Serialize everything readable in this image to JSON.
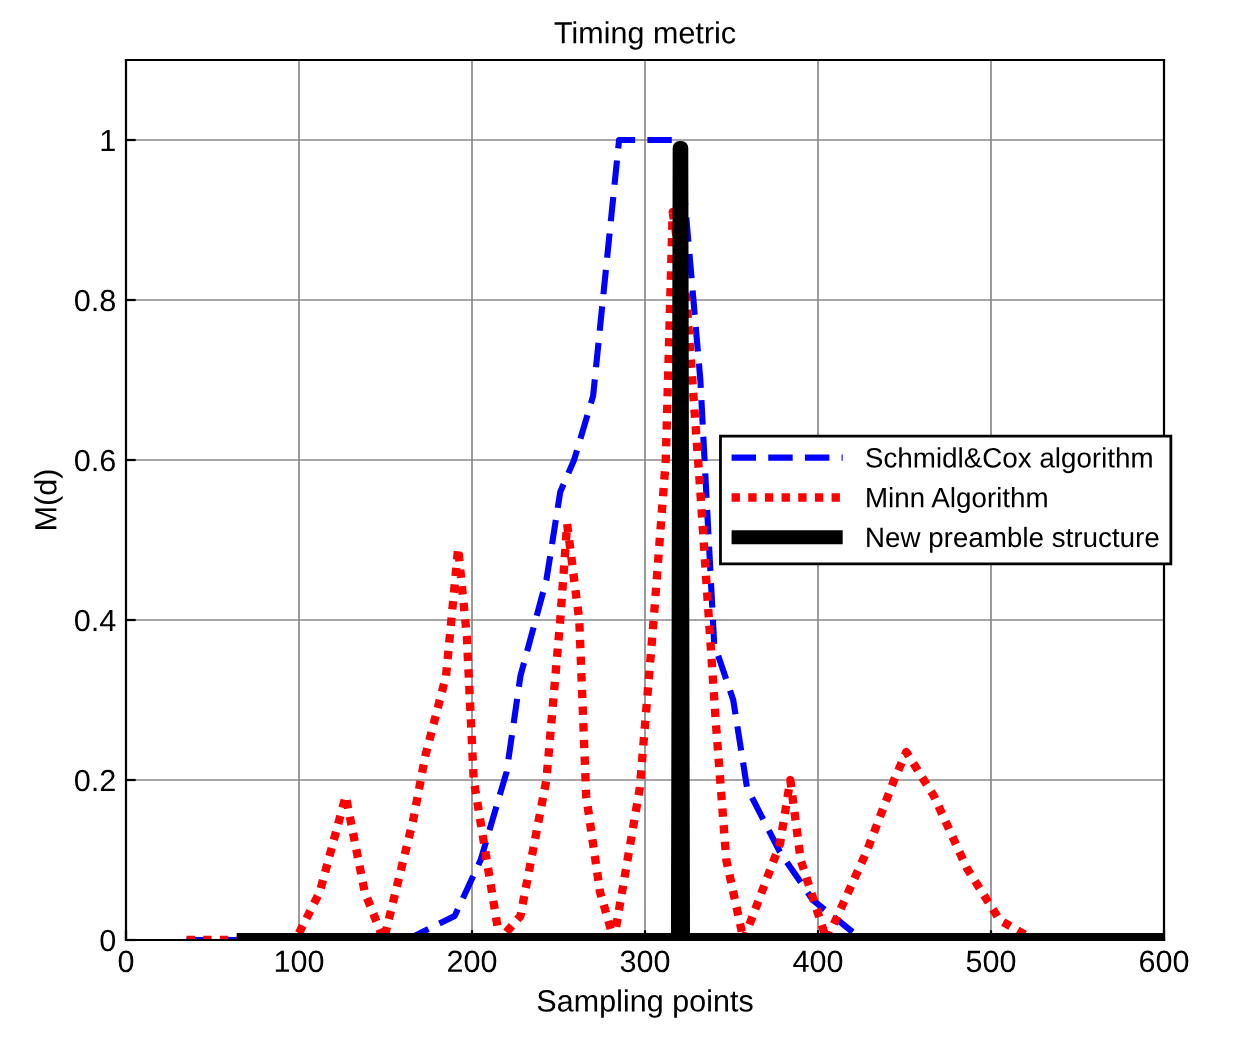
{
  "chart_data": {
    "type": "line",
    "title": "Timing metric",
    "xlabel": "Sampling points",
    "ylabel": "M(d)",
    "xlim": [
      0,
      600
    ],
    "ylim": [
      0,
      1.1
    ],
    "xticks": [
      0,
      100,
      200,
      300,
      400,
      500,
      600
    ],
    "yticks": [
      0,
      0.2,
      0.4,
      0.6,
      0.8,
      1
    ],
    "grid": true,
    "legend": "right",
    "series": [
      {
        "name": "Schmidl&Cox algorithm",
        "color": "#0000ff",
        "line_style": "dashed",
        "x": [
          35,
          100,
          162,
          190,
          205,
          220,
          228,
          243,
          251,
          259,
          270,
          285,
          320,
          332,
          340,
          351,
          359,
          378,
          397,
          420
        ],
        "values": [
          0,
          0,
          0,
          0.03,
          0.1,
          0.21,
          0.33,
          0.45,
          0.56,
          0.6,
          0.68,
          1,
          1,
          0.7,
          0.37,
          0.3,
          0.19,
          0.11,
          0.05,
          0.01
        ]
      },
      {
        "name": "Minn Algorithm",
        "color": "#ff0000",
        "line_style": "dotted",
        "x": [
          35,
          98,
          112,
          127,
          138,
          149,
          166,
          173,
          185,
          192,
          197,
          201,
          216,
          228,
          243,
          251,
          255,
          262,
          266,
          274,
          282,
          297,
          305,
          312,
          316,
          324,
          332,
          341,
          347,
          357,
          378,
          384,
          390,
          405,
          428,
          444,
          451,
          467,
          486,
          505,
          525,
          600
        ],
        "values": [
          0,
          0,
          0.06,
          0.18,
          0.06,
          0,
          0.15,
          0.23,
          0.33,
          0.49,
          0.38,
          0.2,
          0,
          0.03,
          0.2,
          0.4,
          0.52,
          0.4,
          0.18,
          0.06,
          0,
          0.19,
          0.4,
          0.6,
          0.91,
          0.8,
          0.56,
          0.27,
          0.1,
          0,
          0.12,
          0.2,
          0.1,
          0,
          0.11,
          0.2,
          0.235,
          0.18,
          0.09,
          0.025,
          0,
          0
        ]
      },
      {
        "name": "New preamble structure",
        "color": "#000000",
        "line_style": "solid",
        "x": [
          64,
          319,
          320,
          321,
          322,
          600
        ],
        "values": [
          0,
          0,
          0.99,
          0.99,
          0,
          0
        ]
      }
    ]
  }
}
